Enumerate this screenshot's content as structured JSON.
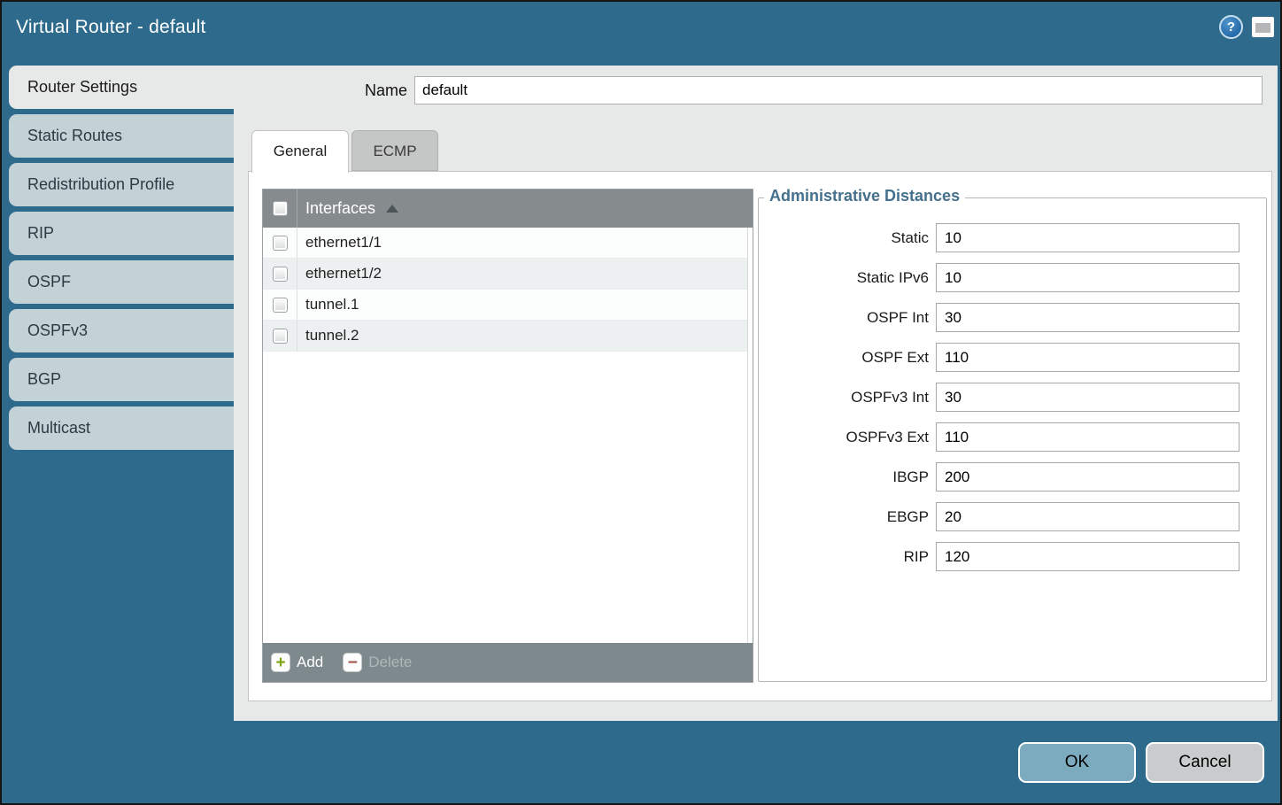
{
  "window": {
    "title": "Virtual Router - default",
    "icons": {
      "help": "help-icon",
      "restore": "restore-window-icon"
    }
  },
  "sidebar": {
    "items": [
      {
        "label": "Router Settings",
        "active": true
      },
      {
        "label": "Static Routes",
        "active": false
      },
      {
        "label": "Redistribution Profile",
        "active": false
      },
      {
        "label": "RIP",
        "active": false
      },
      {
        "label": "OSPF",
        "active": false
      },
      {
        "label": "OSPFv3",
        "active": false
      },
      {
        "label": "BGP",
        "active": false
      },
      {
        "label": "Multicast",
        "active": false
      }
    ]
  },
  "form": {
    "name_label": "Name",
    "name_value": "default"
  },
  "tabs": [
    {
      "label": "General",
      "active": true
    },
    {
      "label": "ECMP",
      "active": false
    }
  ],
  "interfaces": {
    "header": "Interfaces",
    "sort_icon": "sort-ascending-icon",
    "rows": [
      "ethernet1/1",
      "ethernet1/2",
      "tunnel.1",
      "tunnel.2"
    ],
    "checked": [
      false,
      false,
      false,
      false
    ],
    "add_label": "Add",
    "delete_label": "Delete",
    "delete_enabled": false
  },
  "admin_distances": {
    "legend": "Administrative Distances",
    "fields": [
      {
        "label": "Static",
        "value": "10"
      },
      {
        "label": "Static IPv6",
        "value": "10"
      },
      {
        "label": "OSPF Int",
        "value": "30"
      },
      {
        "label": "OSPF Ext",
        "value": "110"
      },
      {
        "label": "OSPFv3 Int",
        "value": "30"
      },
      {
        "label": "OSPFv3 Ext",
        "value": "110"
      },
      {
        "label": "IBGP",
        "value": "200"
      },
      {
        "label": "EBGP",
        "value": "20"
      },
      {
        "label": "RIP",
        "value": "120"
      }
    ]
  },
  "buttons": {
    "ok": "OK",
    "cancel": "Cancel"
  },
  "colors": {
    "dialog_bg": "#2d6a8c",
    "sidebar_tab_bg": "#c3d2d6",
    "panel_bg": "#e7e8e8",
    "table_header_bg": "#868b8e",
    "table_footer_bg": "#7e898d",
    "row_alt_bg": "#edf0f1",
    "legend_text": "#45708d",
    "add_icon_green": "#7fa30c",
    "delete_icon_red": "#a2544a",
    "ok_button_bg": "#7cabc0",
    "cancel_button_bg": "#c9cccd"
  }
}
